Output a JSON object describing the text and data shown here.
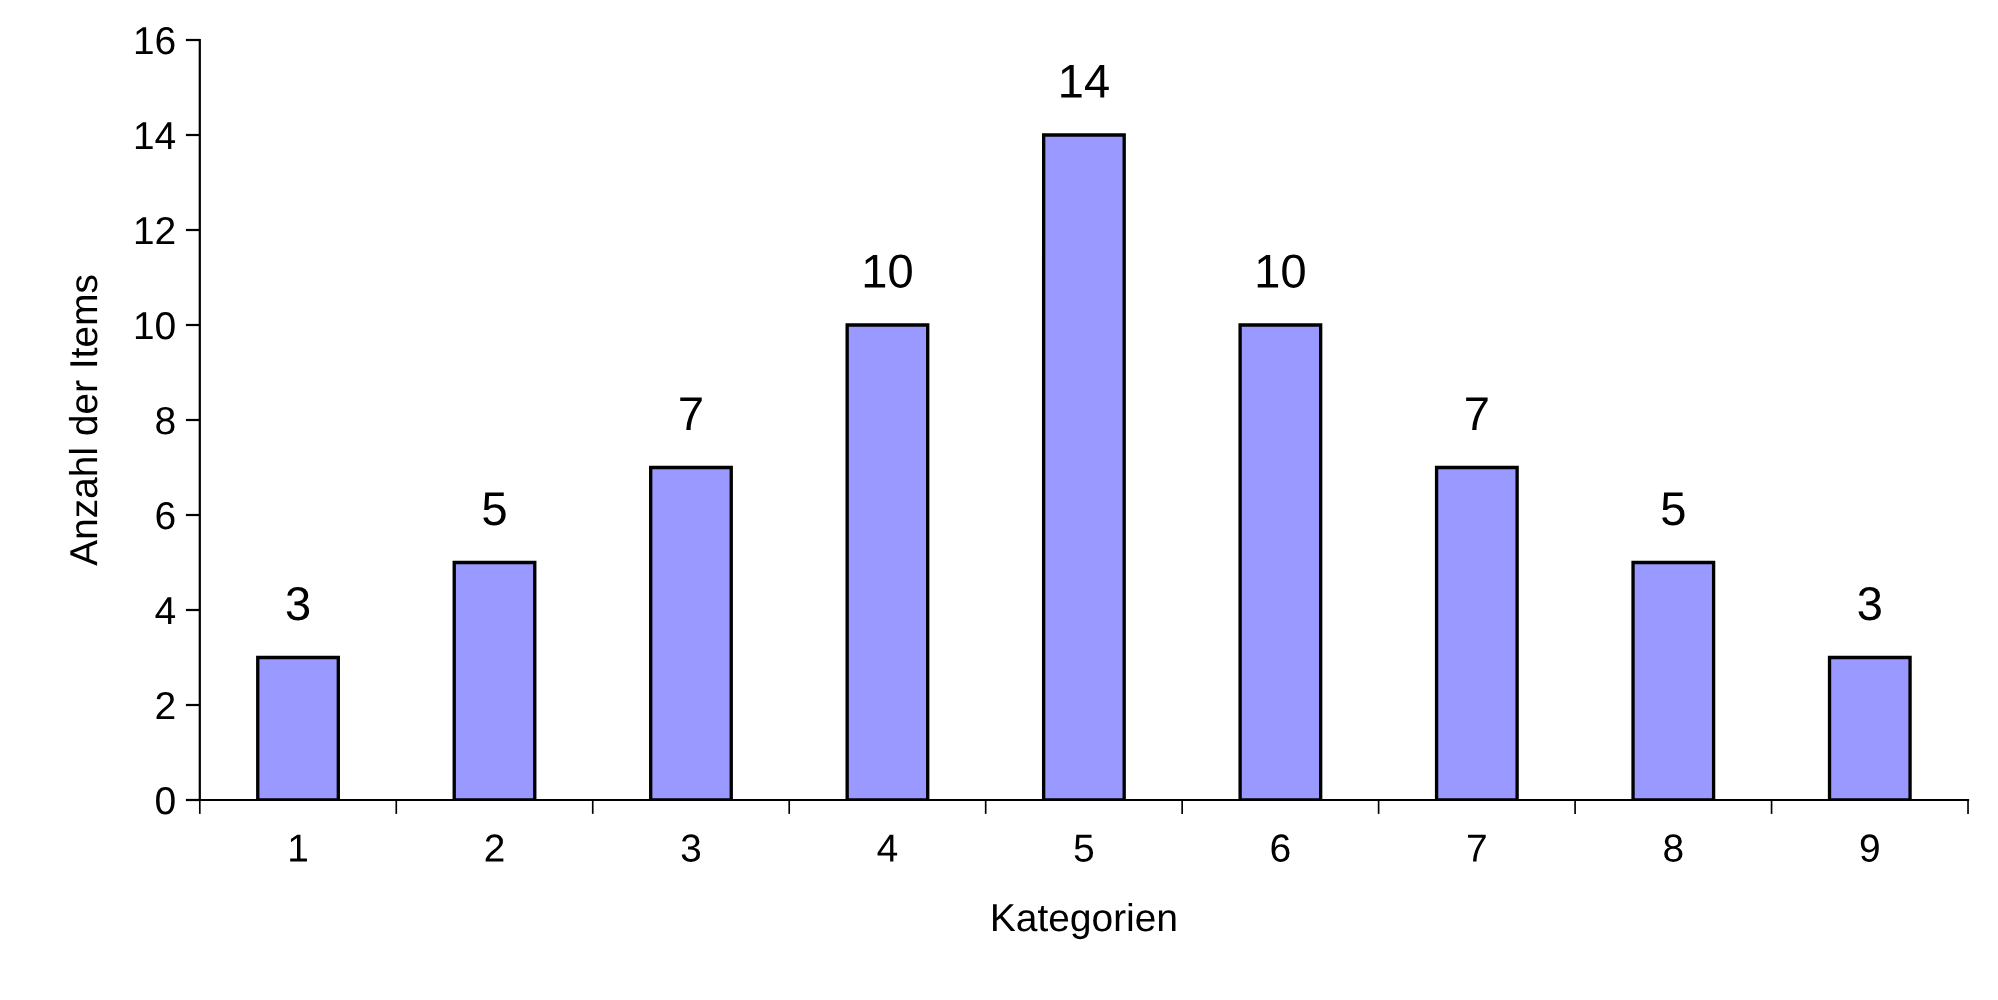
{
  "chart_data": {
    "type": "bar",
    "xlabel": "Kategorien",
    "ylabel": "Anzahl der Items",
    "categories": [
      "1",
      "2",
      "3",
      "4",
      "5",
      "6",
      "7",
      "8",
      "9"
    ],
    "values": [
      3,
      5,
      7,
      10,
      14,
      10,
      7,
      5,
      3
    ],
    "color": "#9999ff",
    "ylim": [
      0,
      16
    ],
    "yticks": [
      0,
      2,
      4,
      6,
      8,
      10,
      12,
      14,
      16
    ],
    "data_labels": true
  }
}
